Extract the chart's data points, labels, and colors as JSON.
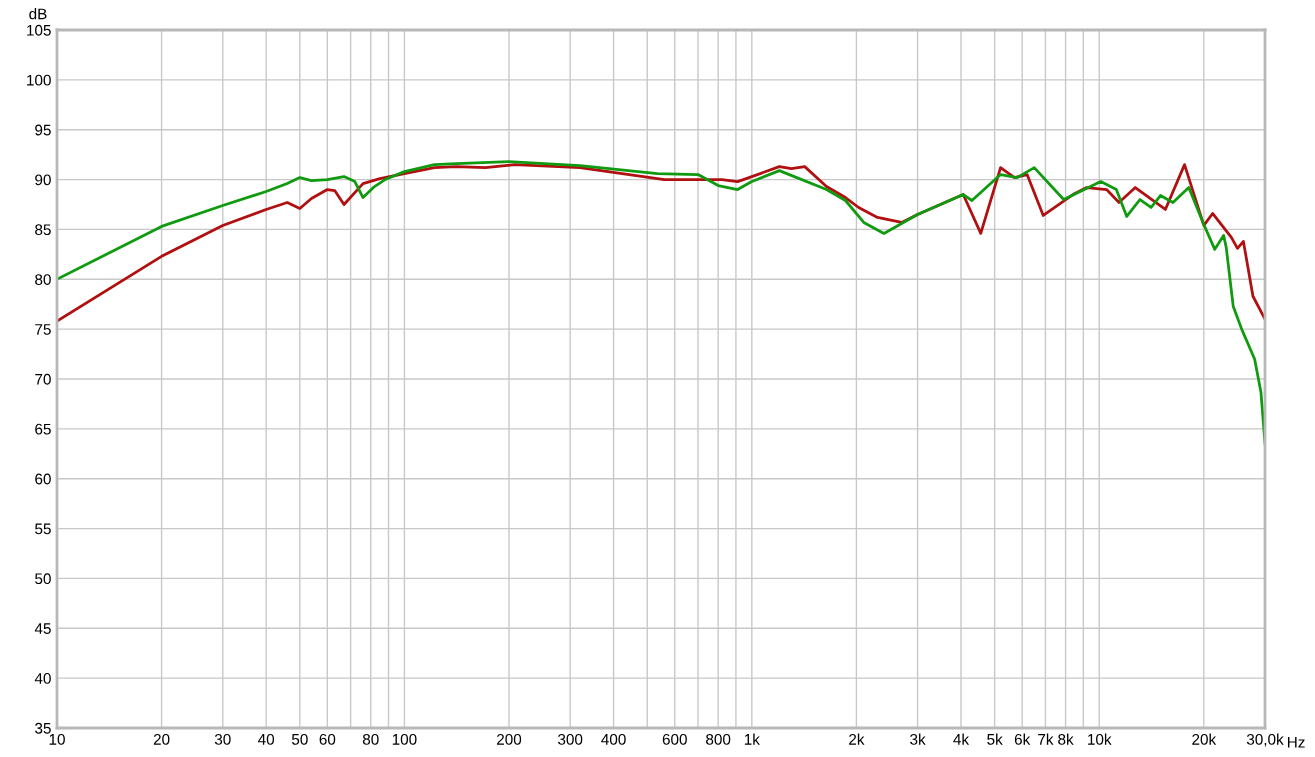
{
  "chart_data": {
    "type": "line",
    "xlabel": "Hz",
    "ylabel": "dB",
    "log": "x",
    "grid": true,
    "line_style": "solid",
    "xlim": [
      10,
      30000
    ],
    "ylim": [
      35,
      105
    ],
    "xticks": [
      10,
      20,
      30,
      40,
      50,
      60,
      {
        "value": 70,
        "label": null
      },
      80,
      {
        "value": 90,
        "label": null
      },
      100,
      200,
      300,
      400,
      {
        "value": 500,
        "label": null
      },
      600,
      {
        "value": 700,
        "label": null
      },
      800,
      {
        "value": 900,
        "label": null
      },
      {
        "value": 1000,
        "label": "1k"
      },
      {
        "value": 2000,
        "label": "2k"
      },
      {
        "value": 3000,
        "label": "3k"
      },
      {
        "value": 4000,
        "label": "4k"
      },
      {
        "value": 5000,
        "label": "5k"
      },
      {
        "value": 6000,
        "label": "6k"
      },
      {
        "value": 7000,
        "label": "7k"
      },
      {
        "value": 8000,
        "label": "8k"
      },
      {
        "value": 9000,
        "label": null
      },
      {
        "value": 10000,
        "label": "10k"
      },
      {
        "value": 20000,
        "label": "20k"
      },
      {
        "value": 30000,
        "label": "30,0k"
      }
    ],
    "yticks": [
      35,
      40,
      45,
      50,
      55,
      60,
      65,
      70,
      75,
      80,
      85,
      90,
      95,
      100,
      105
    ],
    "series": [
      {
        "color": "#b01010",
        "x": [
          10,
          20,
          30,
          40,
          46,
          50,
          54,
          60,
          63,
          67,
          76,
          85,
          100,
          122,
          141,
          171,
          208,
          320,
          560,
          690,
          820,
          910,
          1000,
          1200,
          1300,
          1420,
          1640,
          1860,
          2030,
          2300,
          2700,
          3000,
          4060,
          4560,
          5200,
          5700,
          6200,
          6900,
          8400,
          9200,
          10500,
          11400,
          12700,
          15500,
          17600,
          20000,
          21200,
          24000,
          25000,
          26000,
          27700,
          30000
        ],
        "values": [
          75.8,
          82.3,
          85.4,
          87.0,
          87.7,
          87.1,
          88.1,
          89.0,
          88.9,
          87.5,
          89.6,
          90.1,
          90.6,
          91.2,
          91.3,
          91.2,
          91.5,
          91.2,
          90.0,
          90.0,
          90.0,
          89.8,
          90.3,
          91.3,
          91.1,
          91.3,
          89.3,
          88.2,
          87.2,
          86.2,
          85.7,
          86.5,
          88.5,
          84.6,
          91.2,
          90.2,
          90.5,
          86.4,
          88.5,
          89.2,
          89.0,
          87.7,
          89.2,
          87.0,
          91.5,
          85.4,
          86.6,
          84.2,
          83.1,
          83.8,
          78.3,
          76.0
        ]
      },
      {
        "color": "#109a10",
        "x": [
          10,
          20,
          30,
          40,
          46,
          50,
          54,
          60,
          67,
          72,
          76,
          82,
          88,
          100,
          122,
          141,
          200,
          320,
          535,
          700,
          800,
          910,
          1000,
          1200,
          1640,
          1860,
          2100,
          2400,
          3000,
          4060,
          4300,
          5200,
          5800,
          6500,
          7900,
          10100,
          11200,
          12000,
          13100,
          14100,
          15000,
          16300,
          18100,
          20000,
          21500,
          22800,
          23200,
          24300,
          25700,
          28000,
          29200,
          30000
        ],
        "values": [
          80.0,
          85.3,
          87.4,
          88.8,
          89.6,
          90.2,
          89.9,
          90.0,
          90.3,
          89.8,
          88.2,
          89.3,
          90.0,
          90.8,
          91.5,
          91.6,
          91.8,
          91.4,
          90.6,
          90.5,
          89.4,
          89.0,
          89.8,
          90.9,
          89.0,
          87.9,
          85.7,
          84.6,
          86.5,
          88.5,
          87.9,
          90.5,
          90.2,
          91.2,
          88.0,
          89.8,
          89.0,
          86.3,
          88.0,
          87.2,
          88.4,
          87.7,
          89.2,
          85.5,
          83.0,
          84.4,
          83.2,
          77.3,
          75.0,
          72.0,
          68.7,
          63.5
        ]
      }
    ]
  }
}
